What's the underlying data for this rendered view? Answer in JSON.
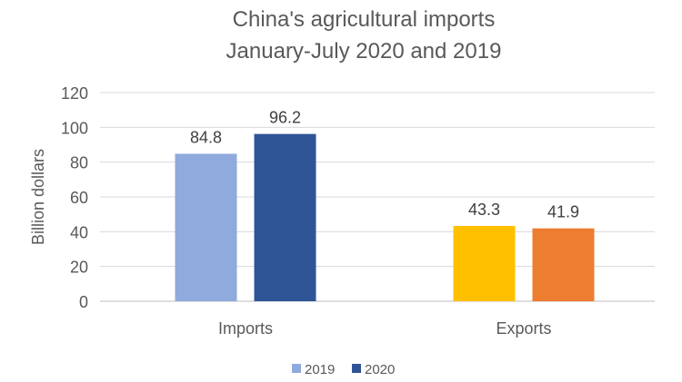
{
  "chart_data": {
    "type": "bar",
    "title": [
      "China's agricultural imports",
      "January-July 2020 and 2019"
    ],
    "xlabel": "",
    "ylabel": "Billion dollars",
    "ylim": [
      0,
      120
    ],
    "yticks": [
      0,
      20,
      40,
      60,
      80,
      100,
      120
    ],
    "grid": true,
    "legend_position": "bottom",
    "categories": [
      "Imports",
      "Exports"
    ],
    "series": [
      {
        "name": "2019",
        "values": [
          84.8,
          43.3
        ],
        "colors": [
          "#8FAADC",
          "#FFC000"
        ]
      },
      {
        "name": "2020",
        "values": [
          96.2,
          41.9
        ],
        "colors": [
          "#2F5597",
          "#ED7D31"
        ]
      }
    ],
    "data_labels": [
      [
        "84.8",
        "43.3"
      ],
      [
        "96.2",
        "41.9"
      ]
    ],
    "legend": [
      {
        "label": "2019",
        "color": "#8FAADC"
      },
      {
        "label": "2020",
        "color": "#2F5597"
      }
    ]
  }
}
